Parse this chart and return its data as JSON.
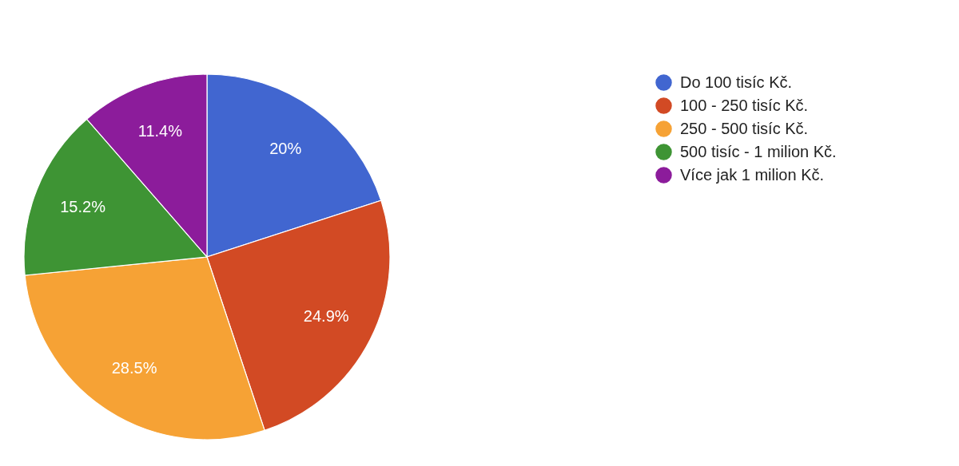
{
  "chart_data": {
    "type": "pie",
    "categories": [
      "Do 100 tisíc Kč.",
      "100 - 250 tisíc Kč.",
      "250 - 500 tisíc Kč.",
      "500 tisíc - 1 milion Kč.",
      "Více jak 1 milion Kč."
    ],
    "values": [
      20,
      24.9,
      28.5,
      15.2,
      11.4
    ],
    "colors": [
      "#4166d0",
      "#d24a24",
      "#f6a235",
      "#3e9434",
      "#8c1c9b"
    ],
    "value_labels": [
      "20%",
      "24.9%",
      "28.5%",
      "15.2%",
      "11.4%"
    ],
    "legend": "top right"
  }
}
